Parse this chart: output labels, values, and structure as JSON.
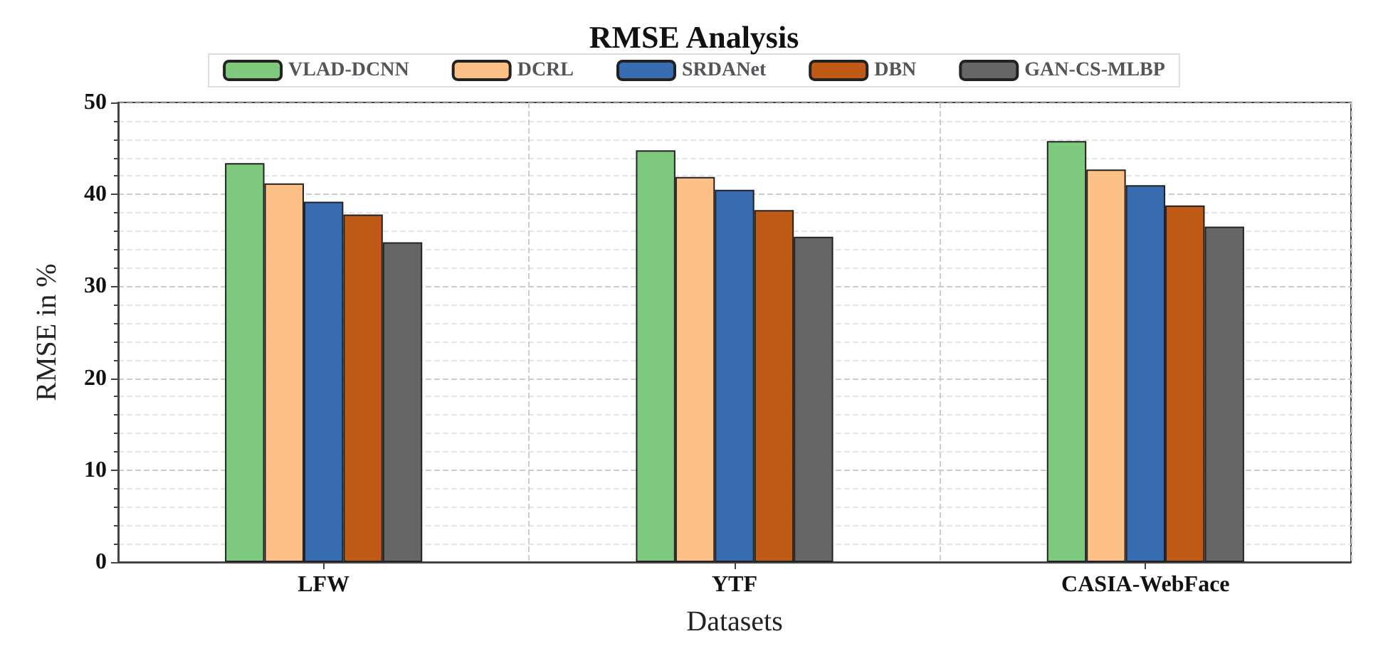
{
  "chart_data": {
    "type": "bar",
    "title": "RMSE Analysis",
    "xlabel": "Datasets",
    "ylabel": "RMSE in %",
    "categories": [
      "LFW",
      "YTF",
      "CASIA-WebFace"
    ],
    "series": [
      {
        "name": "VLAD-DCNN",
        "color": "#7fc97f",
        "values": [
          43.4,
          44.8,
          45.8
        ]
      },
      {
        "name": "DCRL",
        "color": "#fdc086",
        "values": [
          41.2,
          41.9,
          42.7
        ]
      },
      {
        "name": "SRDANet",
        "color": "#386cb0",
        "values": [
          39.2,
          40.5,
          41.0
        ]
      },
      {
        "name": "DBN",
        "color": "#bf5b17",
        "values": [
          37.8,
          38.3,
          38.8
        ]
      },
      {
        "name": "GAN-CS-MLBP",
        "color": "#666666",
        "values": [
          34.8,
          35.4,
          36.5
        ]
      }
    ],
    "ylim": [
      0,
      50
    ],
    "yticks": [
      0,
      10,
      20,
      30,
      40,
      50
    ],
    "grid": true,
    "legend": "top"
  }
}
